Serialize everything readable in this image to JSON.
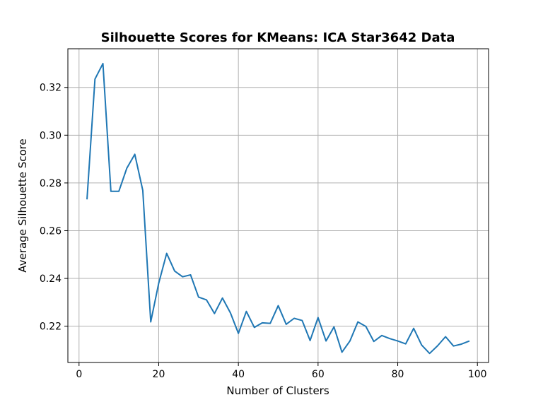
{
  "chart_data": {
    "type": "line",
    "title": "Silhouette Scores for KMeans: ICA Star3642 Data",
    "xlabel": "Number of Clusters",
    "ylabel": "Average Silhouette Score",
    "xlim": [
      -2.8,
      102.8
    ],
    "ylim": [
      0.2048,
      0.3362
    ],
    "xticks": [
      0,
      20,
      40,
      60,
      80,
      100
    ],
    "yticks": [
      0.22,
      0.24,
      0.26,
      0.28,
      0.3,
      0.32
    ],
    "xtick_labels": [
      "0",
      "20",
      "40",
      "60",
      "80",
      "100"
    ],
    "ytick_labels": [
      "0.22",
      "0.24",
      "0.26",
      "0.28",
      "0.30",
      "0.32"
    ],
    "grid": true,
    "line_color": "#1f77b4",
    "series": [
      {
        "x": [
          2,
          4,
          6,
          8,
          10,
          12,
          14,
          16,
          18,
          20,
          22,
          24,
          26,
          28,
          30,
          32,
          34,
          36,
          38,
          40,
          42,
          44,
          46,
          48,
          50,
          52,
          54,
          56,
          58,
          60,
          62,
          64,
          66,
          68,
          70,
          72,
          74,
          76,
          78,
          80,
          82,
          84,
          86,
          88,
          90,
          92,
          94,
          96,
          98
        ],
        "values": [
          0.2731,
          0.3235,
          0.33,
          0.2765,
          0.2765,
          0.2862,
          0.292,
          0.2769,
          0.2218,
          0.238,
          0.2505,
          0.2431,
          0.2407,
          0.2415,
          0.2322,
          0.231,
          0.2253,
          0.2318,
          0.2256,
          0.217,
          0.2262,
          0.2195,
          0.2214,
          0.2212,
          0.2286,
          0.2208,
          0.2233,
          0.2224,
          0.214,
          0.2236,
          0.2138,
          0.2197,
          0.2091,
          0.2138,
          0.2218,
          0.2199,
          0.2136,
          0.2161,
          0.2148,
          0.2138,
          0.2126,
          0.2191,
          0.2121,
          0.2086,
          0.2118,
          0.2156,
          0.2117,
          0.2125,
          0.2138
        ]
      }
    ]
  }
}
